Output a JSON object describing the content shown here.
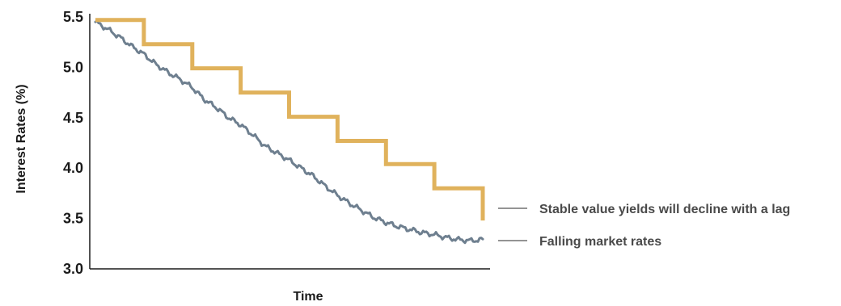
{
  "chart_data": {
    "type": "line",
    "title": "",
    "xlabel": "Time",
    "ylabel": "Interest Rates (%)",
    "ylim": [
      3.0,
      5.5
    ],
    "yticks": [
      "3.0",
      "3.5",
      "4.0",
      "4.5",
      "5.0",
      "5.5"
    ],
    "grid": false,
    "series": [
      {
        "name": "Stable value yields will decline with a lag",
        "style": "step",
        "color": "#E0B25C",
        "x": [
          0,
          1,
          2,
          3,
          4,
          5,
          6,
          7,
          8
        ],
        "values": [
          5.47,
          5.23,
          4.99,
          4.75,
          4.51,
          4.27,
          4.04,
          3.8,
          3.48
        ]
      },
      {
        "name": "Falling market rates",
        "style": "line",
        "color": "#6E7F8F",
        "x": [
          0,
          0.25,
          0.5,
          0.75,
          1,
          1.25,
          1.5,
          1.75,
          2,
          2.25,
          2.5,
          2.75,
          3,
          3.25,
          3.5,
          3.75,
          4,
          4.25,
          4.5,
          4.75,
          5,
          5.25,
          5.5,
          5.75,
          6,
          6.25,
          6.5,
          6.75,
          7,
          7.25,
          7.5,
          7.75,
          8
        ],
        "values": [
          5.45,
          5.38,
          5.3,
          5.21,
          5.13,
          5.03,
          4.95,
          4.88,
          4.8,
          4.68,
          4.6,
          4.5,
          4.43,
          4.33,
          4.22,
          4.15,
          4.08,
          4.0,
          3.92,
          3.82,
          3.73,
          3.65,
          3.58,
          3.51,
          3.46,
          3.42,
          3.39,
          3.36,
          3.34,
          3.31,
          3.29,
          3.28,
          3.29
        ]
      }
    ],
    "annotations": [
      {
        "text": "Stable value yields will decline with a lag",
        "series": 0
      },
      {
        "text": "Falling market rates",
        "series": 1
      }
    ]
  }
}
